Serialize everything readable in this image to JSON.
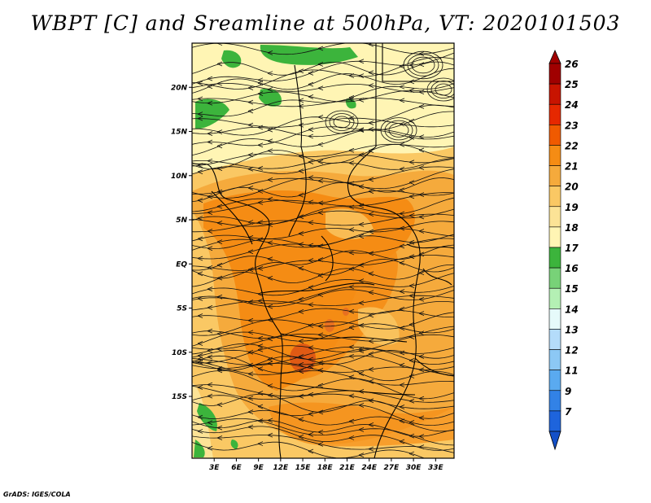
{
  "title": "WBPT [C] and Sreamline at 500hPa, VT: 2020101503",
  "credit": "GrADS: IGES/COLA",
  "map": {
    "lat_range": [
      -22,
      25
    ],
    "lon_range": [
      0,
      35.5
    ],
    "lat_ticks": [
      {
        "value": 20,
        "label": "20N"
      },
      {
        "value": 15,
        "label": "15N"
      },
      {
        "value": 10,
        "label": "10N"
      },
      {
        "value": 5,
        "label": "5N"
      },
      {
        "value": 0,
        "label": "EQ"
      },
      {
        "value": -5,
        "label": "5S"
      },
      {
        "value": -10,
        "label": "10S"
      },
      {
        "value": -15,
        "label": "15S"
      }
    ],
    "lon_ticks": [
      {
        "value": 3,
        "label": "3E"
      },
      {
        "value": 6,
        "label": "6E"
      },
      {
        "value": 9,
        "label": "9E"
      },
      {
        "value": 12,
        "label": "12E"
      },
      {
        "value": 15,
        "label": "15E"
      },
      {
        "value": 18,
        "label": "18E"
      },
      {
        "value": 21,
        "label": "21E"
      },
      {
        "value": 24,
        "label": "24E"
      },
      {
        "value": 27,
        "label": "27E"
      },
      {
        "value": 30,
        "label": "30E"
      },
      {
        "value": 33,
        "label": "33E"
      }
    ]
  },
  "colorbar": {
    "levels": [
      {
        "label": "26",
        "color": "#a00000"
      },
      {
        "label": "25",
        "color": "#c81400"
      },
      {
        "label": "24",
        "color": "#e62800"
      },
      {
        "label": "23",
        "color": "#f05a00"
      },
      {
        "label": "22",
        "color": "#f58c14"
      },
      {
        "label": "21",
        "color": "#f5aa3c"
      },
      {
        "label": "20",
        "color": "#fac864"
      },
      {
        "label": "19",
        "color": "#fce396"
      },
      {
        "label": "18",
        "color": "#fff5b4"
      },
      {
        "label": "17",
        "color": "#3cb43c"
      },
      {
        "label": "16",
        "color": "#78d278"
      },
      {
        "label": "15",
        "color": "#b4f0b4"
      },
      {
        "label": "14",
        "color": "#e6fafa"
      },
      {
        "label": "13",
        "color": "#b4dcfa"
      },
      {
        "label": "12",
        "color": "#8cc8f5"
      },
      {
        "label": "11",
        "color": "#5aaaf0"
      },
      {
        "label": "9",
        "color": "#3282e6"
      },
      {
        "label": "7",
        "color": "#1e64dc"
      }
    ],
    "bottom_color": "#1450c8"
  }
}
